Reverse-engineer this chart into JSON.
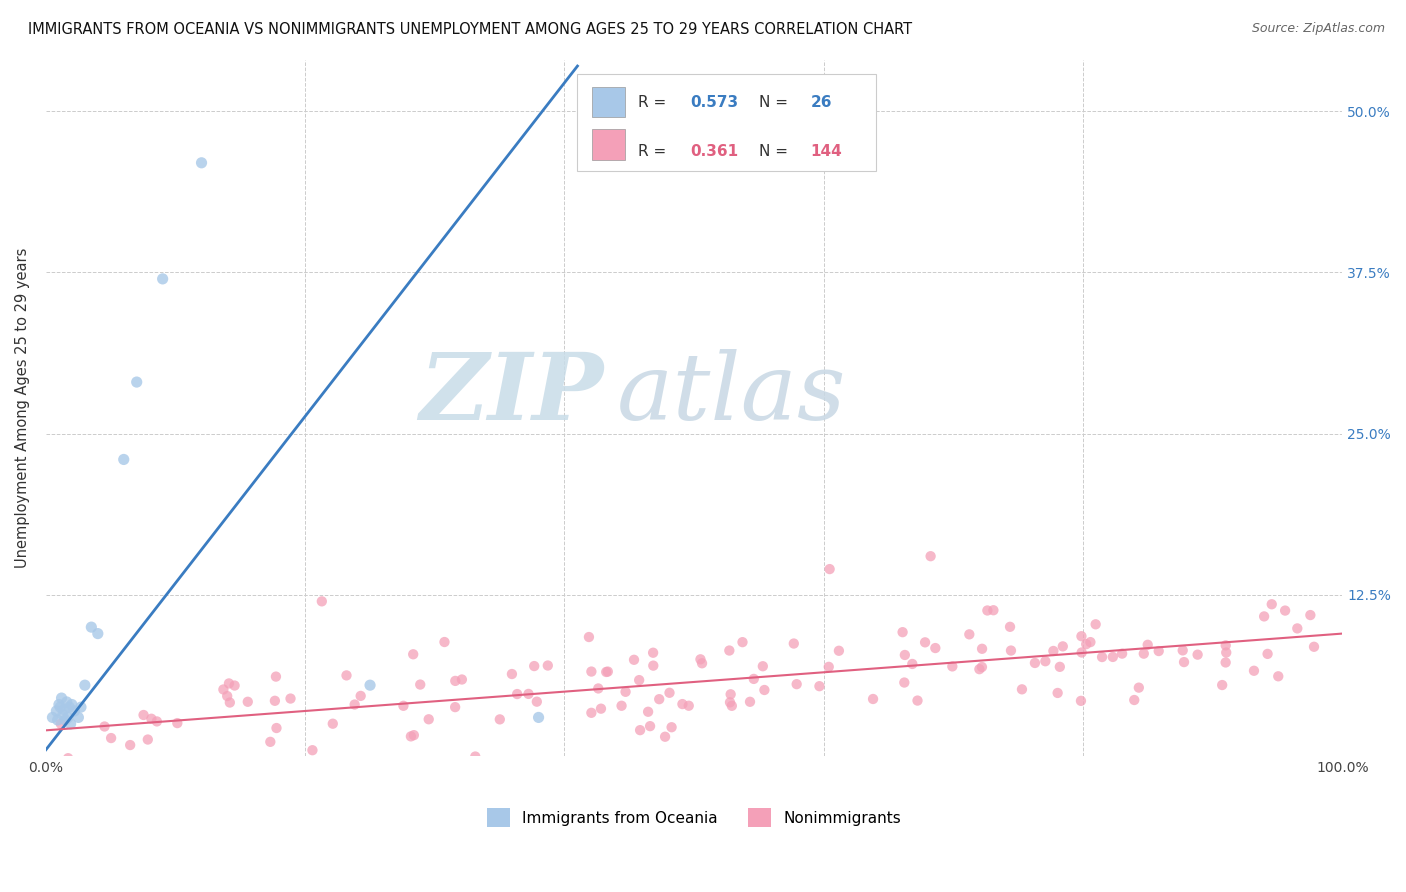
{
  "title": "IMMIGRANTS FROM OCEANIA VS NONIMMIGRANTS UNEMPLOYMENT AMONG AGES 25 TO 29 YEARS CORRELATION CHART",
  "source": "Source: ZipAtlas.com",
  "ylabel": "Unemployment Among Ages 25 to 29 years",
  "xlim": [
    0.0,
    1.0
  ],
  "ylim": [
    0.0,
    0.54
  ],
  "yticks": [
    0.0,
    0.125,
    0.25,
    0.375,
    0.5
  ],
  "yticklabels_right": [
    "",
    "12.5%",
    "25.0%",
    "37.5%",
    "50.0%"
  ],
  "xtick_left_label": "0.0%",
  "xtick_right_label": "100.0%",
  "legend1_label": "Immigrants from Oceania",
  "legend2_label": "Nonimmigrants",
  "R1": "0.573",
  "N1": "26",
  "R2": "0.361",
  "N2": "144",
  "color1": "#a8c8e8",
  "color2": "#f4a0b8",
  "trendline1_color": "#3a7cc1",
  "trendline2_color": "#e06080",
  "grid_color": "#cccccc",
  "watermark_zip_color": "#c8dce8",
  "watermark_atlas_color": "#c8d8e4",
  "blue_x": [
    0.005,
    0.008,
    0.009,
    0.01,
    0.011,
    0.012,
    0.013,
    0.014,
    0.015,
    0.016,
    0.017,
    0.018,
    0.019,
    0.02,
    0.022,
    0.025,
    0.027,
    0.03,
    0.035,
    0.04,
    0.06,
    0.07,
    0.09,
    0.12,
    0.25,
    0.38
  ],
  "blue_y": [
    0.03,
    0.035,
    0.028,
    0.04,
    0.038,
    0.045,
    0.032,
    0.036,
    0.028,
    0.042,
    0.03,
    0.038,
    0.025,
    0.04,
    0.035,
    0.03,
    0.038,
    0.055,
    0.1,
    0.095,
    0.23,
    0.29,
    0.37,
    0.46,
    0.055,
    0.03
  ],
  "blue_trend_x0": 0.0,
  "blue_trend_y0": 0.005,
  "blue_trend_x1": 0.41,
  "blue_trend_y1": 0.535,
  "pink_trend_x0": 0.0,
  "pink_trend_y0": 0.02,
  "pink_trend_x1": 1.0,
  "pink_trend_y1": 0.095
}
